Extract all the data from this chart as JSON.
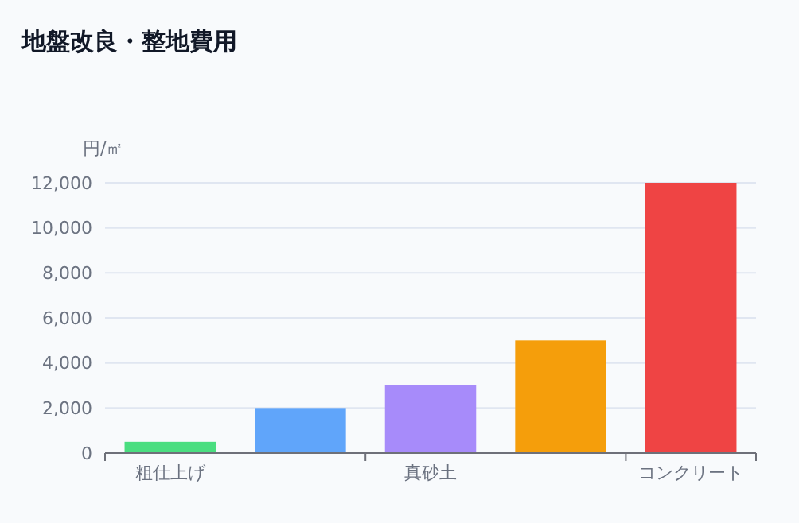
{
  "chart_data": {
    "type": "bar",
    "title": "地盤改良・整地費用",
    "ylabel": "円/㎡",
    "categories": [
      "粗仕上げ",
      null,
      "真砂土",
      null,
      "コンクリート"
    ],
    "values": [
      500,
      2000,
      3000,
      5000,
      12000
    ],
    "colors": [
      "#4ade80",
      "#60a5fa",
      "#a78bfa",
      "#f59e0b",
      "#ef4444"
    ],
    "ylim": [
      0,
      12000
    ],
    "yticks": [
      {
        "value": 0,
        "label": "0"
      },
      {
        "value": 2000,
        "label": "2,000"
      },
      {
        "value": 4000,
        "label": "4,000"
      },
      {
        "value": 6000,
        "label": "6,000"
      },
      {
        "value": 8000,
        "label": "8,000"
      },
      {
        "value": 10000,
        "label": "10,000"
      },
      {
        "value": 12000,
        "label": "12,000"
      }
    ],
    "grid": "y"
  }
}
